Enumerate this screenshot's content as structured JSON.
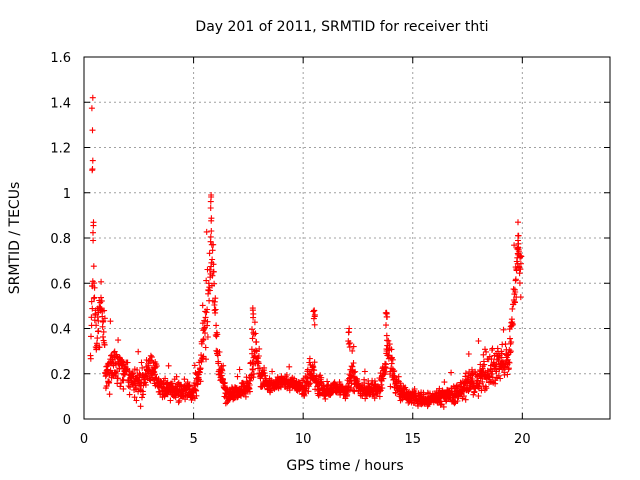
{
  "chart_data": {
    "type": "scatter",
    "title": "Day 201 of 2011, SRMTID for receiver thti",
    "xlabel": "GPS time / hours",
    "ylabel": "SRMTID / TECUs",
    "xlim": [
      0,
      24
    ],
    "ylim": [
      0,
      1.6
    ],
    "xticks": [
      0,
      5,
      10,
      15,
      20
    ],
    "xtick_labels": [
      "0",
      "5",
      "10",
      "15",
      "20"
    ],
    "yticks": [
      0,
      0.2,
      0.4,
      0.6,
      0.8,
      1,
      1.2,
      1.4,
      1.6
    ],
    "ytick_labels": [
      "0",
      "0.2",
      "0.4",
      "0.6",
      "0.8",
      "1",
      "1.2",
      "1.4",
      "1.6"
    ],
    "grid": true,
    "marker": "+",
    "color": "#ff0000",
    "data_range_hours": [
      0.3,
      19.95
    ],
    "envelope": {
      "x": [
        0.3,
        0.4,
        0.5,
        0.6,
        0.8,
        1.0,
        1.5,
        2.0,
        2.5,
        3.0,
        3.5,
        4.0,
        4.5,
        5.0,
        5.3,
        5.6,
        5.85,
        6.1,
        6.5,
        7.0,
        7.5,
        7.8,
        8.1,
        8.5,
        9.0,
        9.5,
        10.0,
        10.4,
        10.7,
        11.0,
        11.5,
        12.0,
        12.2,
        12.5,
        13.0,
        13.5,
        13.9,
        14.2,
        14.5,
        15.0,
        15.5,
        16.0,
        16.5,
        17.0,
        17.5,
        18.0,
        18.5,
        19.0,
        19.4,
        19.6,
        19.8,
        19.95
      ],
      "center": [
        0.3,
        0.7,
        0.45,
        0.35,
        0.5,
        0.2,
        0.25,
        0.2,
        0.15,
        0.22,
        0.15,
        0.13,
        0.13,
        0.12,
        0.22,
        0.45,
        0.75,
        0.25,
        0.1,
        0.12,
        0.14,
        0.3,
        0.18,
        0.15,
        0.17,
        0.16,
        0.13,
        0.2,
        0.15,
        0.12,
        0.14,
        0.12,
        0.2,
        0.14,
        0.12,
        0.14,
        0.3,
        0.15,
        0.12,
        0.1,
        0.08,
        0.09,
        0.1,
        0.11,
        0.15,
        0.18,
        0.22,
        0.25,
        0.25,
        0.5,
        0.75,
        0.6
      ],
      "spread": [
        0.1,
        0.45,
        0.2,
        0.2,
        0.2,
        0.15,
        0.15,
        0.1,
        0.15,
        0.13,
        0.1,
        0.08,
        0.08,
        0.08,
        0.1,
        0.25,
        0.25,
        0.12,
        0.06,
        0.06,
        0.08,
        0.2,
        0.08,
        0.06,
        0.05,
        0.05,
        0.06,
        0.15,
        0.08,
        0.06,
        0.05,
        0.06,
        0.15,
        0.07,
        0.06,
        0.07,
        0.17,
        0.08,
        0.07,
        0.06,
        0.05,
        0.05,
        0.06,
        0.07,
        0.1,
        0.12,
        0.15,
        0.15,
        0.12,
        0.2,
        0.12,
        0.3
      ]
    },
    "notable_peaks": [
      {
        "x": 0.4,
        "y": 1.42
      },
      {
        "x": 5.8,
        "y": 0.99
      },
      {
        "x": 7.7,
        "y": 0.49
      },
      {
        "x": 10.5,
        "y": 0.48
      },
      {
        "x": 12.1,
        "y": 0.4
      },
      {
        "x": 13.8,
        "y": 0.47
      },
      {
        "x": 19.8,
        "y": 0.87
      }
    ],
    "point_count": 1800
  }
}
